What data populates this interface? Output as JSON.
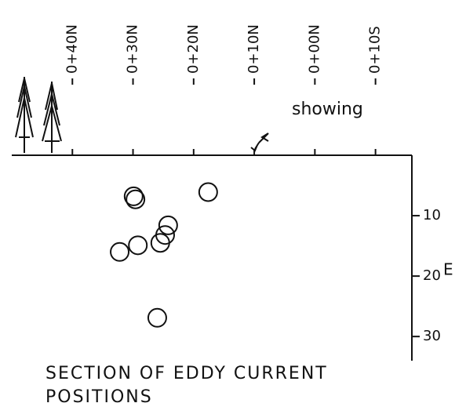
{
  "chart_data": {
    "type": "scatter",
    "title": "SECTION OF EDDY CURRENT POSITIONS",
    "annotation": "showing",
    "y_label": "E",
    "xlim": [
      50,
      -16
    ],
    "xticks": [
      {
        "value": 40,
        "label": "0+40N"
      },
      {
        "value": 30,
        "label": "0+30N"
      },
      {
        "value": 20,
        "label": "0+20N"
      },
      {
        "value": 10,
        "label": "0+10N"
      },
      {
        "value": 0,
        "label": "0+00N"
      },
      {
        "value": -10,
        "label": "0+10S"
      }
    ],
    "ylim": [
      0,
      34
    ],
    "yticks": [
      10,
      20,
      30
    ],
    "color": "#111111",
    "x": [
      17.6,
      29.9,
      29.6,
      24.2,
      24.7,
      25.5,
      29.2,
      32.2,
      26.0
    ],
    "values": [
      6.1,
      6.8,
      7.3,
      11.6,
      13.2,
      14.5,
      14.9,
      16.0,
      26.9
    ]
  }
}
